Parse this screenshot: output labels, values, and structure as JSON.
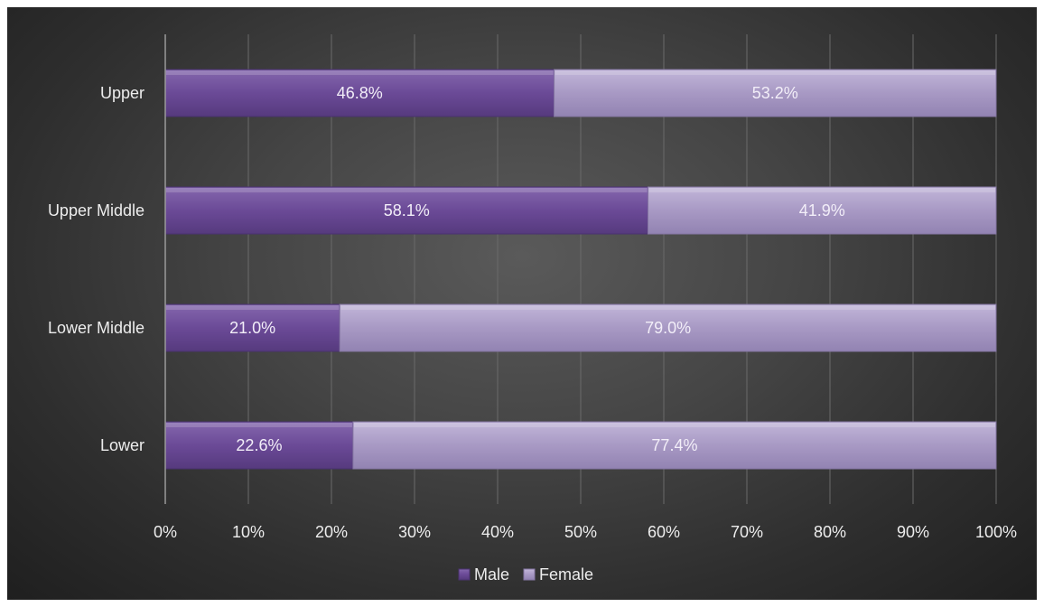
{
  "chart_data": {
    "type": "bar",
    "orientation": "horizontal",
    "stacked": "percent",
    "categories": [
      "Upper",
      "Upper Middle",
      "Lower Middle",
      "Lower"
    ],
    "series": [
      {
        "name": "Male",
        "values": [
          46.8,
          58.1,
          21.0,
          22.6
        ],
        "color": "#6b4a97"
      },
      {
        "name": "Female",
        "values": [
          53.2,
          41.9,
          79.0,
          77.4
        ],
        "color": "#a899c4"
      }
    ],
    "data_labels": [
      [
        "46.8%",
        "58.1%",
        "21.0%",
        "22.6%"
      ],
      [
        "53.2%",
        "41.9%",
        "79.0%",
        "77.4%"
      ]
    ],
    "x_ticks": [
      "0%",
      "10%",
      "20%",
      "30%",
      "40%",
      "50%",
      "60%",
      "70%",
      "80%",
      "90%",
      "100%"
    ],
    "xlim": [
      0,
      100
    ],
    "xlabel": "",
    "ylabel": "",
    "title": "",
    "grid": true,
    "legend": {
      "position": "bottom",
      "entries": [
        "Male",
        "Female"
      ]
    },
    "background": "#3c3c3c"
  }
}
